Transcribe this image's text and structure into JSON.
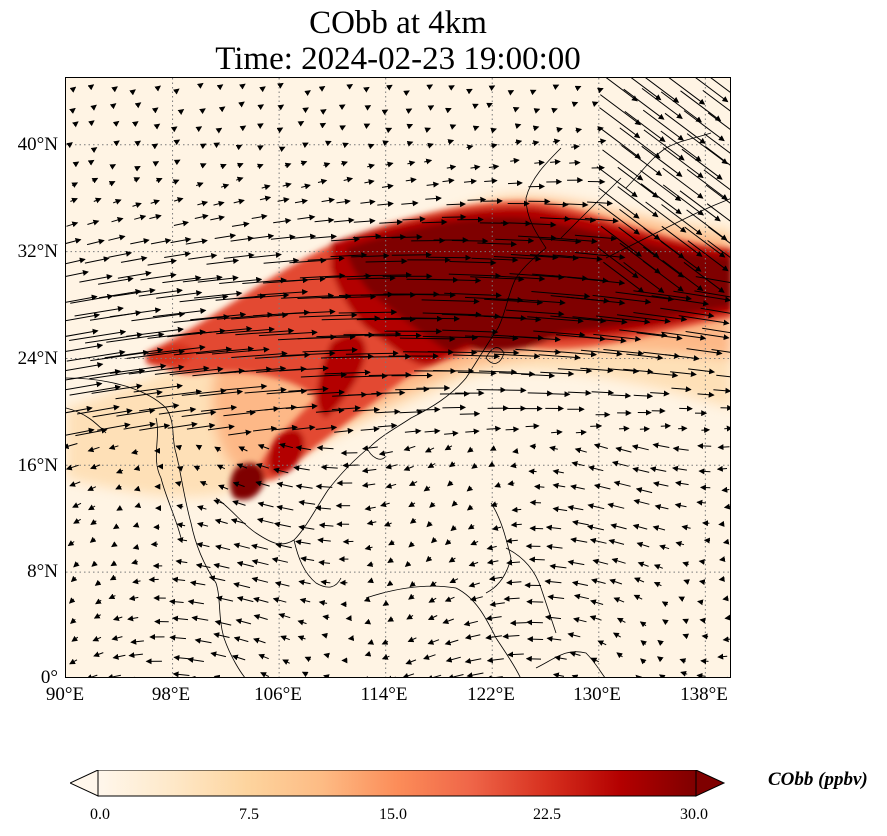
{
  "title": {
    "line1": "CObb at 4km",
    "line2": "Time: 2024-02-23 19:00:00"
  },
  "map": {
    "lon_range": [
      90,
      140
    ],
    "lat_range": [
      0,
      45
    ],
    "gridline_style": "dotted",
    "lat_ticks": [
      {
        "value": 40,
        "label": "40°N"
      },
      {
        "value": 32,
        "label": "32°N"
      },
      {
        "value": 24,
        "label": "24°N"
      },
      {
        "value": 16,
        "label": "16°N"
      },
      {
        "value": 8,
        "label": "8°N"
      },
      {
        "value": 0,
        "label": "0°"
      }
    ],
    "lon_ticks": [
      {
        "value": 90,
        "label": "90°E"
      },
      {
        "value": 98,
        "label": "98°E"
      },
      {
        "value": 106,
        "label": "106°E"
      },
      {
        "value": 114,
        "label": "114°E"
      },
      {
        "value": 122,
        "label": "122°E"
      },
      {
        "value": 130,
        "label": "130°E"
      },
      {
        "value": 138,
        "label": "138°E"
      }
    ],
    "field_variable": "CObb",
    "wind_vectors": "quiver",
    "plume_description": "high CObb band from Indochina (14-20°N, 102-108°E) northeast across southern China (26-33°N) to east of Japan"
  },
  "colorbar": {
    "label": "CObb (ppbv)",
    "min": 0.0,
    "max": 30.0,
    "extend": "both",
    "colormap": "OrRd",
    "colors": [
      "#fff7ec",
      "#fee8c8",
      "#fdd49e",
      "#fdbb84",
      "#fc8d59",
      "#ef6548",
      "#d7301f",
      "#b30000",
      "#7f0000"
    ],
    "ticks": [
      "0.0",
      "7.5",
      "15.0",
      "22.5",
      "30.0"
    ]
  }
}
